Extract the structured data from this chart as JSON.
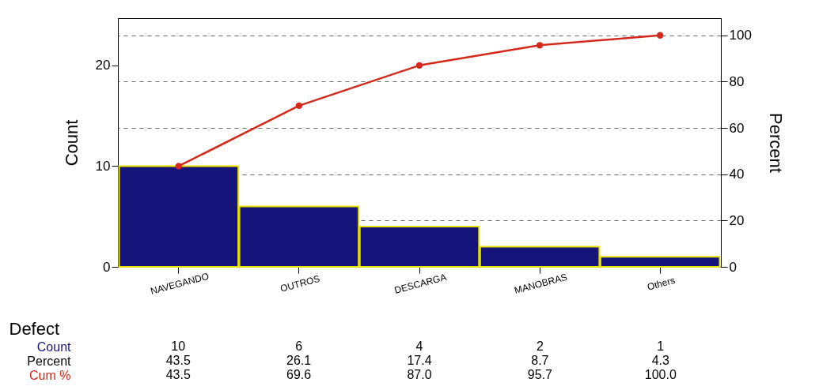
{
  "chart_data": {
    "type": "bar",
    "xlabel": "Defect",
    "ylabel": "Count",
    "y2label": "Percent",
    "categories": [
      "NAVEGANDO",
      "OUTROS",
      "DESCARGA",
      "MANOBRAS",
      "Others"
    ],
    "series": [
      {
        "name": "Count",
        "color": "#14147a",
        "values": [
          10,
          6,
          4,
          2,
          1
        ],
        "value_labels": [
          "10",
          "6",
          "4",
          "2",
          "1"
        ]
      },
      {
        "name": "Cum %",
        "type": "line",
        "axis": "y2",
        "color": "#d42a1e",
        "values": [
          43.5,
          69.6,
          87.0,
          95.7,
          100.0
        ],
        "value_labels": [
          "43.5",
          "69.6",
          "87.0",
          "95.7",
          "100.0"
        ]
      }
    ],
    "ylim": [
      0,
      24.7
    ],
    "yticks": [
      0,
      10,
      20
    ],
    "y2lim": [
      0,
      107.4
    ],
    "y2ticks": [
      0,
      20,
      40,
      60,
      80,
      100
    ],
    "grid": true,
    "marker": "circle",
    "annotations": [
      "Percent",
      "43.5",
      "26.1",
      "17.4",
      "8.7",
      "4.3"
    ]
  }
}
